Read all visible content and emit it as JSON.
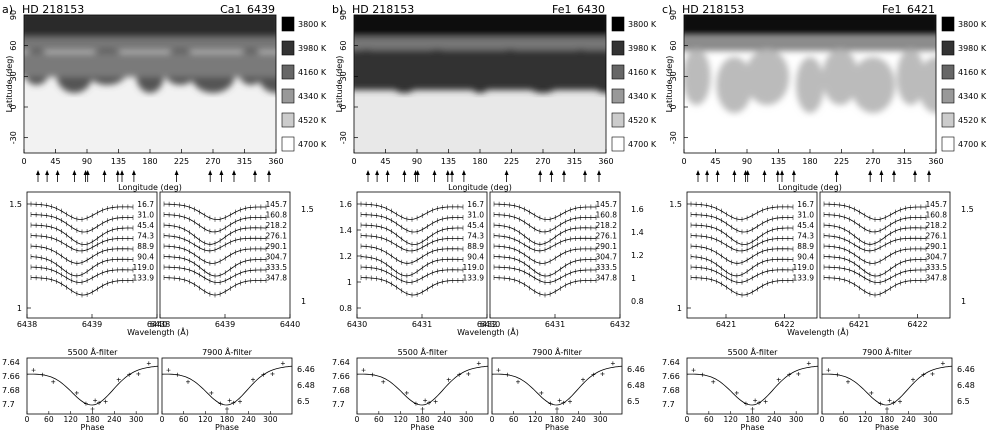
{
  "panels": [
    {
      "tag": "a)",
      "star": "HD 218153",
      "line": "Ca1_6439",
      "map_style": "mid",
      "profile_yticks": [
        1,
        1.5
      ],
      "profile_ytick_side": "left",
      "right_yticks": [
        1.5,
        1
      ],
      "wl_ticks": [
        "6438",
        "6439",
        "6440"
      ],
      "wl_ticks_right": [
        "6438",
        "6439",
        "6440"
      ],
      "wl_center": 6439.2
    },
    {
      "tag": "b)",
      "star": "HD 218153",
      "line": "Fe1_6430",
      "map_style": "dark",
      "profile_yticks": [
        0.8,
        1,
        1.2,
        1.4,
        1.6
      ],
      "profile_ytick_side": "left",
      "right_yticks": [
        1.6,
        1.4,
        1.2,
        1,
        0.8
      ],
      "wl_ticks": [
        "6430",
        "6431",
        "6432"
      ],
      "wl_ticks_right": [
        "6430",
        "6431",
        "6432"
      ],
      "wl_center": 6431.0
    },
    {
      "tag": "c)",
      "star": "HD 218153",
      "line": "Fe1_6421",
      "map_style": "light",
      "profile_yticks": [
        1,
        1.5
      ],
      "profile_ytick_side": "left",
      "right_yticks": [
        1.5,
        1
      ],
      "wl_ticks": [
        "6421",
        "6422"
      ],
      "wl_ticks_right": [
        "6421",
        "6422"
      ],
      "wl_center": 6421.6
    }
  ],
  "map_axes": {
    "ylabel": "Latitude (deg)",
    "xlabel": "Longitude (deg)",
    "lat_ticks": [
      "90",
      "60",
      "30",
      "0",
      "-30"
    ],
    "lon_ticks": [
      "0",
      "45",
      "90",
      "135",
      "180",
      "225",
      "270",
      "315",
      "360"
    ]
  },
  "temperature_scale": [
    {
      "label": "3800 K",
      "color": "#000000"
    },
    {
      "label": "3980 K",
      "color": "#333333"
    },
    {
      "label": "4160 K",
      "color": "#666666"
    },
    {
      "label": "4340 K",
      "color": "#999999"
    },
    {
      "label": "4520 K",
      "color": "#cccccc"
    },
    {
      "label": "4700 K",
      "color": "#ffffff"
    }
  ],
  "phase_labels_left": [
    "16.7",
    "31.0",
    "45.4",
    "74.3",
    "88.9",
    "90.4",
    "119.0",
    "133.9"
  ],
  "phase_labels_right": [
    "145.7",
    "160.8",
    "218.2",
    "276.1",
    "290.1",
    "304.7",
    "333.5",
    "347.8"
  ],
  "wavelength_label": "Wavelength (Å)",
  "photometry": {
    "filters": [
      "5500 Å-filter",
      "7900 Å-filter"
    ],
    "xlabel": "Phase",
    "phase_ticks": [
      "0",
      "60",
      "120",
      "180",
      "240",
      "300"
    ],
    "left_mag_ticks": [
      "7.64",
      "7.66",
      "7.68",
      "7.7"
    ],
    "right_mag_ticks": [
      "6.46",
      "6.48",
      "6.5"
    ]
  },
  "observation_longitudes": [
    20,
    33,
    48,
    72,
    88,
    91,
    115,
    134,
    140,
    157,
    218,
    266,
    282,
    300,
    330,
    350
  ]
}
